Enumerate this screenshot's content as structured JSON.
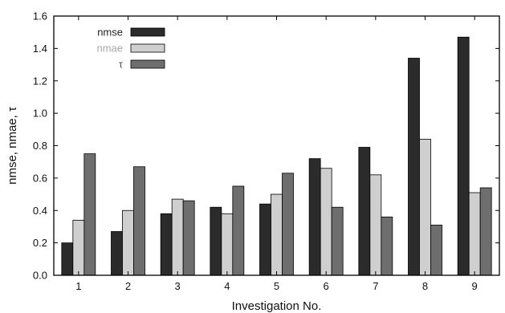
{
  "chart_data": {
    "type": "bar",
    "categories": [
      "1",
      "2",
      "3",
      "4",
      "5",
      "6",
      "7",
      "8",
      "9"
    ],
    "series": [
      {
        "name": "nmse",
        "color": "#2b2b2b",
        "label_color": "#222222",
        "values": [
          0.2,
          0.27,
          0.38,
          0.42,
          0.44,
          0.72,
          0.79,
          1.34,
          1.47
        ]
      },
      {
        "name": "nmae",
        "color": "#cfcfcf",
        "label_color": "#a8a8a8",
        "values": [
          0.34,
          0.4,
          0.47,
          0.38,
          0.5,
          0.66,
          0.62,
          0.84,
          0.51
        ]
      },
      {
        "name": "τ",
        "color": "#6e6e6e",
        "label_color": "#555555",
        "values": [
          0.75,
          0.67,
          0.46,
          0.55,
          0.63,
          0.42,
          0.36,
          0.31,
          0.54
        ]
      }
    ],
    "xlabel": "Investigation No.",
    "ylabel": "nmse, nmae, τ",
    "ylim": [
      0,
      1.6
    ],
    "yticks": [
      "0.0",
      "0.2",
      "0.4",
      "0.6",
      "0.8",
      "1.0",
      "1.2",
      "1.4",
      "1.6"
    ],
    "grid": false,
    "legend_position": "top-left"
  }
}
